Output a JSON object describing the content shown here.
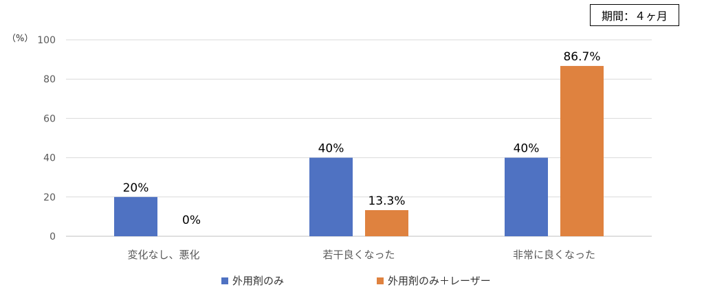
{
  "period_label": "期間：４ヶ月",
  "y_unit_label": "（%）",
  "colors": {
    "series1": "#4f72c2",
    "series2": "#df823f",
    "grid": "#d9d9d9",
    "axis": "#bfbfbf"
  },
  "chart_data": {
    "type": "bar",
    "categories": [
      "変化なし、悪化",
      "若干良くなった",
      "非常に良くなった"
    ],
    "series": [
      {
        "name": "外用剤のみ",
        "values": [
          20,
          40,
          40
        ],
        "labels": [
          "20%",
          "40%",
          "40%"
        ]
      },
      {
        "name": "外用剤のみ＋レーザー",
        "values": [
          0,
          13.3,
          86.7
        ],
        "labels": [
          "0%",
          "13.3%",
          "86.7%"
        ]
      }
    ],
    "ylim": [
      0,
      100
    ],
    "yticks": [
      "0",
      "20",
      "40",
      "60",
      "80",
      "100"
    ],
    "grid": true,
    "legend": "bottom"
  }
}
